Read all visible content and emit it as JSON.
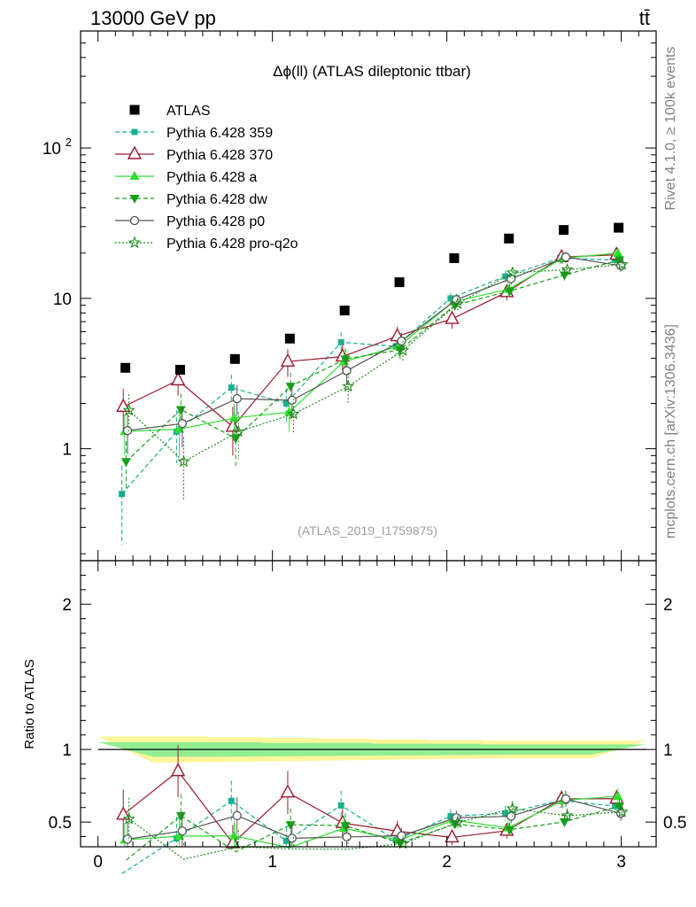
{
  "header": {
    "energy_label": "13000 GeV pp",
    "process_label": "tt̄"
  },
  "side_labels": {
    "rivet": "Rivet 4.1.0, ≥ 100k events",
    "mcplots": "mcplots.cern.ch [arXiv:1306.3436]"
  },
  "chart_data": {
    "type": "scatter",
    "title": "Δϕ(ll) (ATLAS dileptonic ttbar)",
    "analysis_id": "(ATLAS_2019_I1759875)",
    "xlabel": "",
    "ylabel_ratio": "Ratio to ATLAS",
    "xlim": [
      -0.1,
      3.2
    ],
    "ylim_main": [
      0.18,
      600
    ],
    "ylim_ratio": [
      0.33,
      2.3
    ],
    "y_scale_main": "log",
    "x_ticks": [
      {
        "v": 0,
        "label": "0"
      },
      {
        "v": 1,
        "label": "1"
      },
      {
        "v": 2,
        "label": "2"
      },
      {
        "v": 3,
        "label": "3"
      }
    ],
    "y_ticks_main": [
      {
        "v": 1,
        "label": "1"
      },
      {
        "v": 10,
        "label": "10"
      },
      {
        "v": 100,
        "label": "10",
        "sup": "2"
      }
    ],
    "y_ticks_ratio": [
      {
        "v": 0.5,
        "label": "0.5"
      },
      {
        "v": 1,
        "label": "1"
      },
      {
        "v": 2,
        "label": "2"
      }
    ],
    "legend_position": "top-left",
    "x": [
      0.157,
      0.471,
      0.785,
      1.1,
      1.414,
      1.728,
      2.042,
      2.356,
      2.67,
      2.985
    ],
    "reference": {
      "name": "ATLAS",
      "values": [
        3.45,
        3.35,
        3.95,
        5.4,
        8.3,
        12.8,
        18.5,
        25.0,
        28.5,
        29.5
      ],
      "band_inner": [
        0.05,
        0.05,
        0.05,
        0.045,
        0.045,
        0.04,
        0.04,
        0.035,
        0.035,
        0.035
      ],
      "band_outer": [
        0.09,
        0.09,
        0.085,
        0.08,
        0.075,
        0.07,
        0.065,
        0.06,
        0.06,
        0.06
      ]
    },
    "series": [
      {
        "name": "Pythia 6.428 359",
        "color": "#17b08f",
        "dash": "5,3",
        "marker": "square",
        "values": [
          0.5,
          1.3,
          2.55,
          2.0,
          5.1,
          4.8,
          10.0,
          14.0,
          18.5,
          18.0
        ],
        "errors": [
          0.27,
          0.5,
          0.55,
          0.5,
          0.85,
          0.6,
          0.9,
          1.3,
          1.5,
          1.5
        ]
      },
      {
        "name": "Pythia 6.428 370",
        "color": "#9b1a2e",
        "dash": "",
        "marker": "triangle-open",
        "values": [
          1.9,
          2.85,
          1.4,
          3.8,
          4.1,
          5.6,
          7.3,
          11.0,
          18.8,
          19.5
        ],
        "errors": [
          0.6,
          0.6,
          0.5,
          0.8,
          0.8,
          0.9,
          1.0,
          1.3,
          1.7,
          1.8
        ]
      },
      {
        "name": "Pythia 6.428 a",
        "color": "#2ee02e",
        "dash": "",
        "marker": "triangle",
        "values": [
          1.3,
          1.35,
          1.6,
          1.75,
          3.8,
          4.8,
          9.5,
          11.5,
          18.5,
          20.0
        ],
        "errors": [
          0.4,
          0.45,
          0.4,
          0.45,
          0.7,
          0.7,
          0.9,
          1.2,
          1.6,
          1.6
        ]
      },
      {
        "name": "Pythia 6.428 dw",
        "color": "#18a018",
        "dash": "5,3",
        "marker": "triangle-down",
        "values": [
          0.82,
          1.82,
          1.17,
          2.6,
          3.95,
          4.55,
          9.0,
          11.2,
          14.3,
          18.0
        ],
        "errors": [
          0.3,
          0.5,
          0.4,
          0.6,
          0.7,
          0.7,
          0.9,
          1.2,
          1.4,
          1.6
        ]
      },
      {
        "name": "Pythia 6.428 p0",
        "color": "#555555",
        "dash": "",
        "marker": "circle-open",
        "values": [
          1.32,
          1.47,
          2.15,
          2.1,
          3.3,
          5.2,
          9.8,
          13.5,
          18.8,
          16.5
        ],
        "errors": [
          0.4,
          0.45,
          0.5,
          0.5,
          0.65,
          0.7,
          0.9,
          1.2,
          1.6,
          1.5
        ]
      },
      {
        "name": "Pythia 6.428 pro-q2o",
        "color": "#1e8a1e",
        "dash": "2,2",
        "marker": "star",
        "values": [
          1.8,
          0.82,
          1.3,
          1.7,
          2.6,
          4.5,
          9.2,
          14.8,
          15.5,
          16.8
        ],
        "errors": [
          0.5,
          0.37,
          0.45,
          0.45,
          0.6,
          0.7,
          0.9,
          1.3,
          1.4,
          1.5
        ]
      }
    ]
  }
}
